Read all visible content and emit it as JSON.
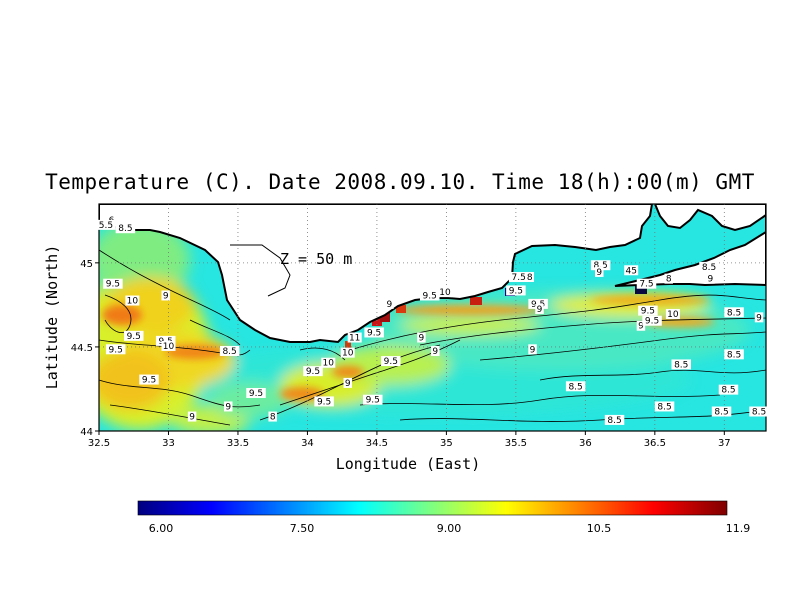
{
  "title": "Temperature (C). Date 2008.09.10. Time 18(h):00(m) GMT",
  "depth_label": "Z = 50 m",
  "map": {
    "xlabel": "Longitude (East)",
    "ylabel": "Latitude (North)",
    "xlim": [
      32.5,
      37.3
    ],
    "ylim": [
      44.0,
      45.35
    ],
    "x_ticks": [
      "32.5",
      "33",
      "33.5",
      "34",
      "34.5",
      "35",
      "35.5",
      "36",
      "36.5",
      "37"
    ],
    "y_ticks": [
      "44",
      "44.5",
      "45"
    ],
    "land_color": "#ffffff",
    "coast_color": "#000000"
  },
  "colorbar": {
    "ticks": [
      "6.00",
      "7.50",
      "9.00",
      "10.5",
      "11.9"
    ],
    "stops": [
      "#00007f",
      "#0000ff",
      "#007fff",
      "#00ffff",
      "#7fff7f",
      "#ffff00",
      "#ff7f00",
      "#ff0000",
      "#7f0000"
    ]
  },
  "contour_labels": [
    {
      "text": "6",
      "lon": 32.59,
      "lat": 45.25
    },
    {
      "text": "5.5",
      "lon": 32.55,
      "lat": 45.22
    },
    {
      "text": "8.5",
      "lon": 32.69,
      "lat": 45.2
    },
    {
      "text": "9.5",
      "lon": 32.6,
      "lat": 44.87
    },
    {
      "text": "10",
      "lon": 32.74,
      "lat": 44.77
    },
    {
      "text": "9",
      "lon": 32.98,
      "lat": 44.8
    },
    {
      "text": "9.5",
      "lon": 32.75,
      "lat": 44.56
    },
    {
      "text": "9.5",
      "lon": 32.98,
      "lat": 44.53
    },
    {
      "text": "10",
      "lon": 33.0,
      "lat": 44.5
    },
    {
      "text": "9.5",
      "lon": 32.62,
      "lat": 44.48
    },
    {
      "text": "8.5",
      "lon": 33.44,
      "lat": 44.47
    },
    {
      "text": "9.5",
      "lon": 32.86,
      "lat": 44.3
    },
    {
      "text": "9",
      "lon": 33.17,
      "lat": 44.08
    },
    {
      "text": "9",
      "lon": 33.43,
      "lat": 44.14
    },
    {
      "text": "9.5",
      "lon": 33.63,
      "lat": 44.22
    },
    {
      "text": "8",
      "lon": 33.75,
      "lat": 44.08
    },
    {
      "text": "9.5",
      "lon": 34.04,
      "lat": 44.35
    },
    {
      "text": "10",
      "lon": 34.15,
      "lat": 44.4
    },
    {
      "text": "9.5",
      "lon": 34.12,
      "lat": 44.17
    },
    {
      "text": "10",
      "lon": 34.29,
      "lat": 44.46
    },
    {
      "text": "11",
      "lon": 34.34,
      "lat": 44.55
    },
    {
      "text": "9.5",
      "lon": 34.48,
      "lat": 44.58
    },
    {
      "text": "9.5",
      "lon": 34.6,
      "lat": 44.41
    },
    {
      "text": "9.5",
      "lon": 34.47,
      "lat": 44.18
    },
    {
      "text": "9",
      "lon": 34.29,
      "lat": 44.28
    },
    {
      "text": "9",
      "lon": 34.59,
      "lat": 44.75
    },
    {
      "text": "9",
      "lon": 34.82,
      "lat": 44.55
    },
    {
      "text": "9",
      "lon": 34.92,
      "lat": 44.47
    },
    {
      "text": "9.5",
      "lon": 34.88,
      "lat": 44.8
    },
    {
      "text": "10",
      "lon": 34.99,
      "lat": 44.82
    },
    {
      "text": "9.5",
      "lon": 35.5,
      "lat": 44.83
    },
    {
      "text": "7.5",
      "lon": 35.52,
      "lat": 44.91
    },
    {
      "text": "8",
      "lon": 35.6,
      "lat": 44.91
    },
    {
      "text": "9.5",
      "lon": 35.66,
      "lat": 44.75
    },
    {
      "text": "9",
      "lon": 35.67,
      "lat": 44.72
    },
    {
      "text": "9",
      "lon": 35.62,
      "lat": 44.48
    },
    {
      "text": "8.5",
      "lon": 35.93,
      "lat": 44.26
    },
    {
      "text": "8.5",
      "lon": 36.11,
      "lat": 44.98
    },
    {
      "text": "9",
      "lon": 36.1,
      "lat": 44.94
    },
    {
      "text": "45",
      "lon": 36.33,
      "lat": 44.95
    },
    {
      "text": "7.5",
      "lon": 36.44,
      "lat": 44.87
    },
    {
      "text": "8",
      "lon": 36.6,
      "lat": 44.9
    },
    {
      "text": "9.5",
      "lon": 36.45,
      "lat": 44.71
    },
    {
      "text": "10",
      "lon": 36.63,
      "lat": 44.69
    },
    {
      "text": "9",
      "lon": 36.4,
      "lat": 44.62
    },
    {
      "text": "9.5",
      "lon": 36.48,
      "lat": 44.65
    },
    {
      "text": "8.5",
      "lon": 36.89,
      "lat": 44.97
    },
    {
      "text": "9",
      "lon": 36.9,
      "lat": 44.9
    },
    {
      "text": "8.5",
      "lon": 37.07,
      "lat": 44.7
    },
    {
      "text": "9",
      "lon": 37.25,
      "lat": 44.67
    },
    {
      "text": "8.5",
      "lon": 36.69,
      "lat": 44.39
    },
    {
      "text": "8.5",
      "lon": 37.07,
      "lat": 44.45
    },
    {
      "text": "8.5",
      "lon": 37.03,
      "lat": 44.24
    },
    {
      "text": "8.5",
      "lon": 36.98,
      "lat": 44.11
    },
    {
      "text": "8.5",
      "lon": 37.25,
      "lat": 44.11
    },
    {
      "text": "8.5",
      "lon": 36.57,
      "lat": 44.14
    },
    {
      "text": "8.5",
      "lon": 36.21,
      "lat": 44.06
    }
  ]
}
